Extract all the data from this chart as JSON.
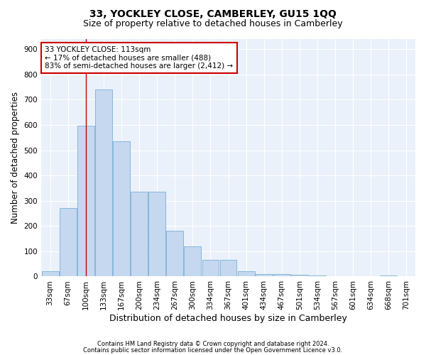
{
  "title": "33, YOCKLEY CLOSE, CAMBERLEY, GU15 1QQ",
  "subtitle": "Size of property relative to detached houses in Camberley",
  "xlabel": "Distribution of detached houses by size in Camberley",
  "ylabel": "Number of detached properties",
  "bar_labels": [
    "33sqm",
    "67sqm",
    "100sqm",
    "133sqm",
    "167sqm",
    "200sqm",
    "234sqm",
    "267sqm",
    "300sqm",
    "334sqm",
    "367sqm",
    "401sqm",
    "434sqm",
    "467sqm",
    "501sqm",
    "534sqm",
    "567sqm",
    "601sqm",
    "634sqm",
    "668sqm",
    "701sqm"
  ],
  "bar_values": [
    22,
    270,
    598,
    740,
    535,
    335,
    335,
    180,
    120,
    65,
    65,
    22,
    10,
    10,
    6,
    5,
    0,
    0,
    0,
    5,
    0
  ],
  "bar_color": "#c5d8f0",
  "bar_edge_color": "#7aafd4",
  "vline_x": 2.0,
  "vline_color": "#cc0000",
  "annotation_text": "33 YOCKLEY CLOSE: 113sqm\n← 17% of detached houses are smaller (488)\n83% of semi-detached houses are larger (2,412) →",
  "annotation_box_color": "#ffffff",
  "annotation_box_edge": "#cc0000",
  "ylim": [
    0,
    940
  ],
  "yticks": [
    0,
    100,
    200,
    300,
    400,
    500,
    600,
    700,
    800,
    900
  ],
  "title_fontsize": 10,
  "subtitle_fontsize": 9,
  "xlabel_fontsize": 9,
  "ylabel_fontsize": 8.5,
  "tick_fontsize": 7.5,
  "ann_fontsize": 7.5,
  "footer1": "Contains HM Land Registry data © Crown copyright and database right 2024.",
  "footer2": "Contains public sector information licensed under the Open Government Licence v3.0.",
  "footer_fontsize": 6,
  "background_color": "#eaf1fa",
  "fig_background": "#ffffff"
}
